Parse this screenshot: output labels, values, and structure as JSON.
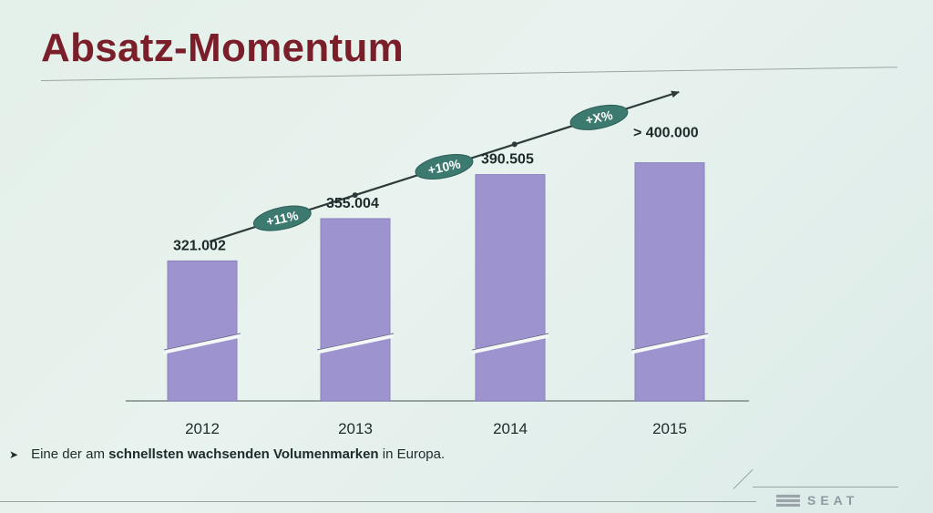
{
  "slide": {
    "title": "Absatz-Momentum",
    "bullet_prefix": "Eine der am ",
    "bullet_bold": "schnellsten wachsenden Volumenmarken",
    "bullet_suffix": " in Europa.",
    "brand": "SEAT"
  },
  "chart_data": {
    "type": "bar",
    "categories": [
      "2012",
      "2013",
      "2014",
      "2015"
    ],
    "values": [
      321002,
      355004,
      390505,
      400000
    ],
    "value_labels": [
      "321.002",
      "355.004",
      "390.505",
      "> 400.000"
    ],
    "growth_labels": [
      "+11%",
      "+10%",
      "+X%"
    ],
    "axis_break": true,
    "grid": false,
    "colors": {
      "bar": "#9d94cf",
      "bar_edge": "#8a82bc",
      "trend": "#2e3a3a",
      "badge": "#3c7a70",
      "badge_text": "#ffffff"
    }
  }
}
